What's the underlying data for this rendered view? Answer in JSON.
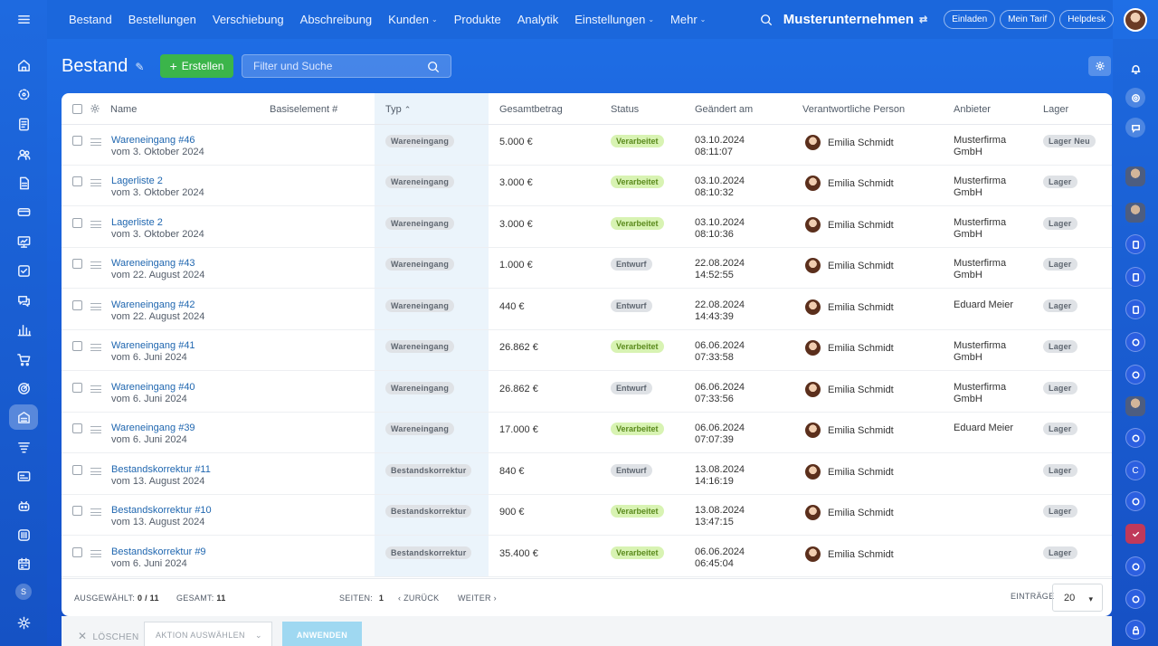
{
  "topnav": {
    "items": [
      {
        "label": "Bestand",
        "dropdown": false
      },
      {
        "label": "Bestellungen",
        "dropdown": false
      },
      {
        "label": "Verschiebung",
        "dropdown": false
      },
      {
        "label": "Abschreibung",
        "dropdown": false
      },
      {
        "label": "Kunden",
        "dropdown": true
      },
      {
        "label": "Produkte",
        "dropdown": false
      },
      {
        "label": "Analytik",
        "dropdown": false
      },
      {
        "label": "Einstellungen",
        "dropdown": true
      },
      {
        "label": "Mehr",
        "dropdown": true
      }
    ],
    "company": "Musterunternehmen",
    "pills": [
      "Einladen",
      "Mein Tarif",
      "Helpdesk"
    ]
  },
  "page": {
    "title": "Bestand",
    "create_label": "Erstellen",
    "search_placeholder": "Filter und Suche"
  },
  "table": {
    "columns": [
      "Name",
      "Basiselement #",
      "Typ",
      "Gesamtbetrag",
      "Status",
      "Geändert am",
      "Verantwortliche Person",
      "Anbieter",
      "Lager"
    ],
    "rows": [
      {
        "name": "Wareneingang #46",
        "sub": "vom 3. Oktober 2024",
        "type": "Wareneingang",
        "sum": "5.000 €",
        "status": "Verarbeitet",
        "status_kind": "ok",
        "date": "03.10.2024",
        "time": "08:11:07",
        "person": "Emilia Schmidt",
        "vendor1": "Musterfirma",
        "vendor2": "GmbH",
        "store": "Lager Neu"
      },
      {
        "name": "Lagerliste 2",
        "sub": "vom 3. Oktober 2024",
        "type": "Wareneingang",
        "sum": "3.000 €",
        "status": "Verarbeitet",
        "status_kind": "ok",
        "date": "03.10.2024",
        "time": "08:10:32",
        "person": "Emilia Schmidt",
        "vendor1": "Musterfirma",
        "vendor2": "GmbH",
        "store": "Lager"
      },
      {
        "name": "Lagerliste 2",
        "sub": "vom 3. Oktober 2024",
        "type": "Wareneingang",
        "sum": "3.000 €",
        "status": "Verarbeitet",
        "status_kind": "ok",
        "date": "03.10.2024",
        "time": "08:10:36",
        "person": "Emilia Schmidt",
        "vendor1": "Musterfirma",
        "vendor2": "GmbH",
        "store": "Lager"
      },
      {
        "name": "Wareneingang #43",
        "sub": "vom 22. August 2024",
        "type": "Wareneingang",
        "sum": "1.000 €",
        "status": "Entwurf",
        "status_kind": "draft",
        "date": "22.08.2024",
        "time": "14:52:55",
        "person": "Emilia Schmidt",
        "vendor1": "Musterfirma",
        "vendor2": "GmbH",
        "store": "Lager"
      },
      {
        "name": "Wareneingang #42",
        "sub": "vom 22. August 2024",
        "type": "Wareneingang",
        "sum": "440 €",
        "status": "Entwurf",
        "status_kind": "draft",
        "date": "22.08.2024",
        "time": "14:43:39",
        "person": "Emilia Schmidt",
        "vendor1": "Eduard Meier",
        "vendor2": "",
        "store": "Lager"
      },
      {
        "name": "Wareneingang #41",
        "sub": "vom 6. Juni 2024",
        "type": "Wareneingang",
        "sum": "26.862 €",
        "status": "Verarbeitet",
        "status_kind": "ok",
        "date": "06.06.2024",
        "time": "07:33:58",
        "person": "Emilia Schmidt",
        "vendor1": "Musterfirma",
        "vendor2": "GmbH",
        "store": "Lager"
      },
      {
        "name": "Wareneingang #40",
        "sub": "vom 6. Juni 2024",
        "type": "Wareneingang",
        "sum": "26.862 €",
        "status": "Entwurf",
        "status_kind": "draft",
        "date": "06.06.2024",
        "time": "07:33:56",
        "person": "Emilia Schmidt",
        "vendor1": "Musterfirma",
        "vendor2": "GmbH",
        "store": "Lager"
      },
      {
        "name": "Wareneingang #39",
        "sub": "vom 6. Juni 2024",
        "type": "Wareneingang",
        "sum": "17.000 €",
        "status": "Verarbeitet",
        "status_kind": "ok",
        "date": "06.06.2024",
        "time": "07:07:39",
        "person": "Emilia Schmidt",
        "vendor1": "Eduard Meier",
        "vendor2": "",
        "store": "Lager"
      },
      {
        "name": "Bestandskorrektur #11",
        "sub": "vom 13. August 2024",
        "type": "Bestandskorrektur",
        "sum": "840 €",
        "status": "Entwurf",
        "status_kind": "draft",
        "date": "13.08.2024",
        "time": "14:16:19",
        "person": "Emilia Schmidt",
        "vendor1": "",
        "vendor2": "",
        "store": "Lager"
      },
      {
        "name": "Bestandskorrektur #10",
        "sub": "vom 13. August 2024",
        "type": "Bestandskorrektur",
        "sum": "900 €",
        "status": "Verarbeitet",
        "status_kind": "ok",
        "date": "13.08.2024",
        "time": "13:47:15",
        "person": "Emilia Schmidt",
        "vendor1": "",
        "vendor2": "",
        "store": "Lager"
      },
      {
        "name": "Bestandskorrektur #9",
        "sub": "vom 6. Juni 2024",
        "type": "Bestandskorrektur",
        "sum": "35.400 €",
        "status": "Verarbeitet",
        "status_kind": "ok",
        "date": "06.06.2024",
        "time": "06:45:04",
        "person": "Emilia Schmidt",
        "vendor1": "",
        "vendor2": "",
        "store": "Lager"
      }
    ]
  },
  "footer": {
    "selected_label": "AUSGEWÄHLT:",
    "selected_value": "0 / 11",
    "total_label": "GESAMT:",
    "total_value": "11",
    "pages_label": "SEITEN:",
    "pages_value": "1",
    "back_label": "ZURÜCK",
    "next_label": "WEITER",
    "entries_label": "EINTRÄGE",
    "entries_value": "20"
  },
  "actions": {
    "delete_label": "LÖSCHEN",
    "select_label": "AKTION AUSWÄHLEN",
    "apply_label": "ANWENDEN"
  },
  "sidebar": {
    "left_badge": "S",
    "right_badge": "C"
  },
  "colors": {
    "primary_blue": "#1b67dc",
    "create_green": "#3bb54a",
    "link_blue": "#2067b0",
    "status_ok_bg": "#d8f3b3",
    "apply_button": "#9fd8f1"
  }
}
